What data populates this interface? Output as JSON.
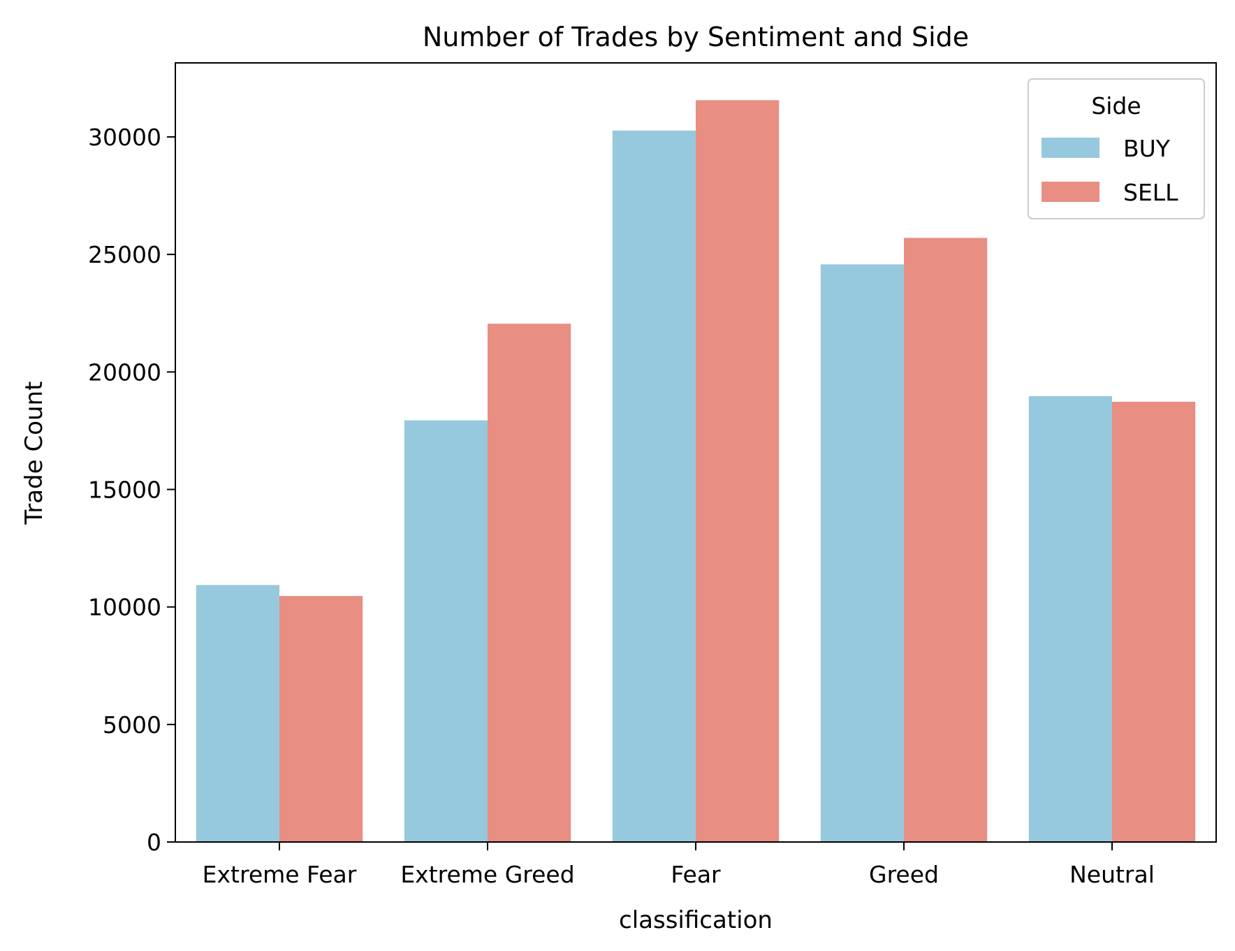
{
  "chart_data": {
    "type": "bar",
    "title": "Number of Trades by Sentiment and Side",
    "xlabel": "classification",
    "ylabel": "Trade Count",
    "categories": [
      "Extreme Fear",
      "Extreme Greed",
      "Fear",
      "Greed",
      "Neutral"
    ],
    "series": [
      {
        "name": "BUY",
        "color": "#97c9de",
        "values": [
          10935,
          17940,
          30270,
          24576,
          18969
        ]
      },
      {
        "name": "SELL",
        "color": "#e88e83",
        "values": [
          10465,
          22052,
          31563,
          25703,
          18732
        ]
      }
    ],
    "ylim": [
      0,
      33150
    ],
    "yticks": [
      0,
      5000,
      10000,
      15000,
      20000,
      25000,
      30000
    ],
    "grid": false,
    "legend": {
      "title": "Side",
      "position": "top-right"
    }
  }
}
